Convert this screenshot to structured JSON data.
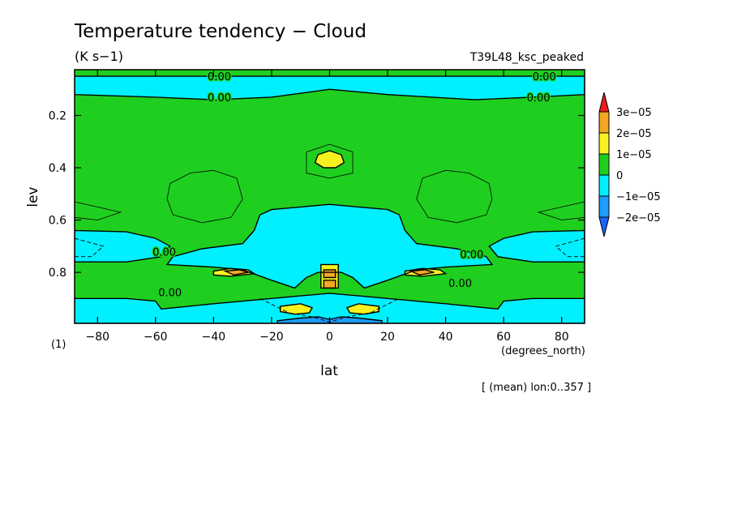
{
  "chart_data": {
    "type": "contour",
    "title": "Temperature tendency − Cloud",
    "units": "(K s−1)",
    "run_label": "T39L48_ksc_peaked",
    "xlabel": "lat",
    "x_units": "(degrees_north)",
    "ylabel": "lev",
    "y_units": "(1)",
    "averaging_note": "[ (mean) lon:0..357 ]",
    "xlim": [
      -87.9,
      87.9
    ],
    "ylim": [
      0.995,
      0.025
    ],
    "x_ticks": [
      {
        "value": -80,
        "label": "−80"
      },
      {
        "value": -60,
        "label": "−60"
      },
      {
        "value": -40,
        "label": "−40"
      },
      {
        "value": -20,
        "label": "−20"
      },
      {
        "value": 0,
        "label": "0"
      },
      {
        "value": 20,
        "label": "20"
      },
      {
        "value": 40,
        "label": "40"
      },
      {
        "value": 60,
        "label": "60"
      },
      {
        "value": 80,
        "label": "80"
      }
    ],
    "y_ticks": [
      {
        "value": 0.2,
        "label": "0.2"
      },
      {
        "value": 0.4,
        "label": "0.4"
      },
      {
        "value": 0.6,
        "label": "0.6"
      },
      {
        "value": 0.8,
        "label": "0.8"
      }
    ],
    "colorbar": {
      "labels": [
        "3e−05",
        "2e−05",
        "1e−05",
        "0",
        "−1e−05",
        "−2e−05"
      ],
      "colors": [
        "#ee1c1c",
        "#f5a623",
        "#f7f21f",
        "#1fcf1f",
        "#00f0ff",
        "#1f9cff",
        "#1b64ff"
      ]
    },
    "contour_labels": [
      "0.00",
      "0.00",
      "0.00",
      "0.00",
      "0.00",
      "0.00",
      "0.00",
      "0.00"
    ],
    "regions": [
      {
        "level": "0 to 1e-05",
        "color": "#1fcf1f",
        "description": "background"
      },
      {
        "level": "-1e-05 to 0",
        "color": "#00f0ff",
        "polygons": [
          [
            [
              -87.9,
              0.05
            ],
            [
              87.9,
              0.05
            ],
            [
              87.9,
              0.12
            ],
            [
              70,
              0.13
            ],
            [
              50,
              0.14
            ],
            [
              20,
              0.12
            ],
            [
              0,
              0.1
            ],
            [
              -20,
              0.13
            ],
            [
              -40,
              0.14
            ],
            [
              -60,
              0.13
            ],
            [
              -87.9,
              0.12
            ]
          ],
          [
            [
              -24,
              0.58
            ],
            [
              -20,
              0.56
            ],
            [
              -10,
              0.55
            ],
            [
              0,
              0.54
            ],
            [
              10,
              0.55
            ],
            [
              20,
              0.56
            ],
            [
              24,
              0.58
            ],
            [
              26,
              0.64
            ],
            [
              30,
              0.69
            ],
            [
              44,
              0.71
            ],
            [
              54,
              0.74
            ],
            [
              56,
              0.77
            ],
            [
              40,
              0.78
            ],
            [
              30,
              0.79
            ],
            [
              20,
              0.83
            ],
            [
              12,
              0.86
            ],
            [
              8,
              0.82
            ],
            [
              4,
              0.8
            ],
            [
              0,
              0.8
            ],
            [
              -4,
              0.8
            ],
            [
              -8,
              0.82
            ],
            [
              -12,
              0.86
            ],
            [
              -20,
              0.83
            ],
            [
              -30,
              0.79
            ],
            [
              -40,
              0.78
            ],
            [
              -56,
              0.77
            ],
            [
              -54,
              0.74
            ],
            [
              -44,
              0.71
            ],
            [
              -30,
              0.69
            ],
            [
              -26,
              0.64
            ]
          ],
          [
            [
              -87.9,
              0.64
            ],
            [
              -70,
              0.645
            ],
            [
              -60,
              0.67
            ],
            [
              -55,
              0.7
            ],
            [
              -58,
              0.74
            ],
            [
              -70,
              0.76
            ],
            [
              -87.9,
              0.76
            ]
          ],
          [
            [
              87.9,
              0.64
            ],
            [
              70,
              0.645
            ],
            [
              60,
              0.67
            ],
            [
              55,
              0.7
            ],
            [
              58,
              0.74
            ],
            [
              70,
              0.76
            ],
            [
              87.9,
              0.76
            ]
          ],
          [
            [
              -87.9,
              0.9
            ],
            [
              -70,
              0.9
            ],
            [
              -60,
              0.91
            ],
            [
              -58,
              0.94
            ],
            [
              -40,
              0.92
            ],
            [
              -20,
              0.9
            ],
            [
              -10,
              0.89
            ],
            [
              0,
              0.88
            ],
            [
              10,
              0.89
            ],
            [
              20,
              0.9
            ],
            [
              40,
              0.92
            ],
            [
              58,
              0.94
            ],
            [
              60,
              0.91
            ],
            [
              70,
              0.9
            ],
            [
              87.9,
              0.9
            ],
            [
              87.9,
              0.995
            ],
            [
              -87.9,
              0.995
            ]
          ]
        ]
      },
      {
        "level": "-2e-05 to -1e-05",
        "color": "#1f9cff",
        "polygons": [
          [
            [
              -18,
              0.985
            ],
            [
              -10,
              0.975
            ],
            [
              -4,
              0.97
            ],
            [
              0,
              0.98
            ],
            [
              4,
              0.97
            ],
            [
              10,
              0.975
            ],
            [
              18,
              0.985
            ],
            [
              18,
              0.995
            ],
            [
              -18,
              0.995
            ]
          ]
        ]
      },
      {
        "level": "1e-05 to 2e-05",
        "color": "#f7f21f",
        "polygons": [
          [
            [
              -4,
              0.35
            ],
            [
              0,
              0.335
            ],
            [
              4,
              0.35
            ],
            [
              5,
              0.38
            ],
            [
              2,
              0.4
            ],
            [
              -2,
              0.4
            ],
            [
              -5,
              0.38
            ]
          ],
          [
            [
              -40,
              0.795
            ],
            [
              -34,
              0.785
            ],
            [
              -28,
              0.79
            ],
            [
              -26,
              0.805
            ],
            [
              -34,
              0.815
            ],
            [
              -40,
              0.81
            ]
          ],
          [
            [
              26,
              0.795
            ],
            [
              32,
              0.785
            ],
            [
              38,
              0.79
            ],
            [
              40,
              0.805
            ],
            [
              32,
              0.815
            ],
            [
              26,
              0.81
            ]
          ],
          [
            [
              -17,
              0.93
            ],
            [
              -10,
              0.92
            ],
            [
              -6,
              0.935
            ],
            [
              -7,
              0.955
            ],
            [
              -12,
              0.96
            ],
            [
              -17,
              0.95
            ]
          ],
          [
            [
              6,
              0.935
            ],
            [
              10,
              0.92
            ],
            [
              17,
              0.93
            ],
            [
              17,
              0.95
            ],
            [
              12,
              0.96
            ],
            [
              7,
              0.955
            ]
          ],
          [
            [
              -3,
              0.77
            ],
            [
              3,
              0.77
            ],
            [
              3,
              0.86
            ],
            [
              -3,
              0.86
            ]
          ]
        ]
      },
      {
        "level": "2e-05 to 3e-05",
        "color": "#f5a623",
        "polygons": [
          [
            [
              -36,
              0.795
            ],
            [
              -31,
              0.79
            ],
            [
              -28,
              0.8
            ],
            [
              -33,
              0.81
            ]
          ],
          [
            [
              28,
              0.795
            ],
            [
              33,
              0.79
            ],
            [
              36,
              0.8
            ],
            [
              31,
              0.81
            ]
          ],
          [
            [
              -2,
              0.79
            ],
            [
              2,
              0.79
            ],
            [
              2,
              0.82
            ],
            [
              -2,
              0.82
            ]
          ],
          [
            [
              -2,
              0.83
            ],
            [
              2,
              0.83
            ],
            [
              2,
              0.86
            ],
            [
              -2,
              0.86
            ]
          ]
        ]
      }
    ]
  }
}
